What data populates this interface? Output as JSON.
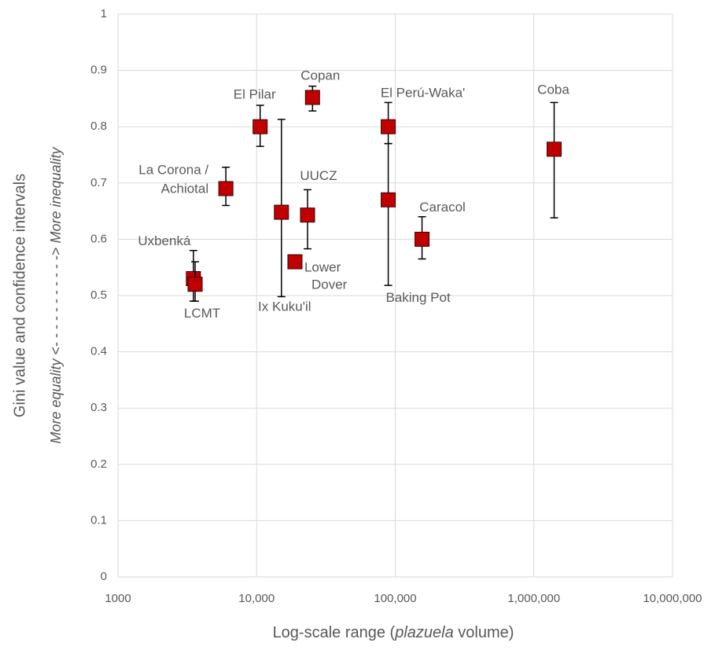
{
  "chart_data": {
    "type": "scatter",
    "x_label": [
      "Log-scale range (",
      "plazuela",
      " volume)"
    ],
    "y_label": "Gini value and confidence intervals",
    "y_sublabel": [
      "More equality",
      " <- - - - - - - - - - -> ",
      "More inequality"
    ],
    "x_log": true,
    "xlim": [
      1000,
      10000000
    ],
    "xticks": [
      1000,
      {
        "value": 10000,
        "label": "10,000"
      },
      {
        "value": 100000,
        "label": "100,000"
      },
      {
        "value": 1000000,
        "label": "1,000,000"
      },
      {
        "value": 10000000,
        "label": "10,000,000"
      }
    ],
    "ylim": [
      0,
      1
    ],
    "yticks": [
      0,
      0.1,
      0.2,
      0.3,
      0.4,
      0.5,
      0.6,
      0.7,
      0.8,
      0.9,
      1
    ],
    "grid": true,
    "color": "#c00000",
    "labels": [
      [
        "Uxbenká"
      ],
      [
        "LCMT"
      ],
      [
        "La Corona /",
        "Achiotal"
      ],
      [
        "El Pilar"
      ],
      [
        "Ix Kuku'il"
      ],
      [
        "Lower",
        "Dover"
      ],
      [
        "UUCZ"
      ],
      [
        "Copan"
      ],
      [
        "El Perú-Waka'"
      ],
      [
        "Baking Pot"
      ],
      [
        "Caracol"
      ],
      [
        "Coba"
      ]
    ],
    "x": [
      3500,
      3600,
      6000,
      10600,
      15100,
      18900,
      23300,
      25300,
      89000,
      89000,
      156000,
      1400000
    ],
    "values": [
      0.53,
      0.52,
      0.69,
      0.8,
      0.648,
      0.56,
      0.643,
      0.852,
      0.8,
      0.67,
      0.6,
      0.76
    ],
    "ci_low": [
      0.49,
      0.49,
      0.66,
      0.765,
      0.498,
      null,
      0.583,
      0.828,
      0.77,
      0.518,
      0.565,
      0.638
    ],
    "ci_high": [
      0.58,
      0.56,
      0.728,
      0.838,
      0.813,
      null,
      0.688,
      0.872,
      0.843,
      0.77,
      0.64,
      0.843
    ]
  }
}
